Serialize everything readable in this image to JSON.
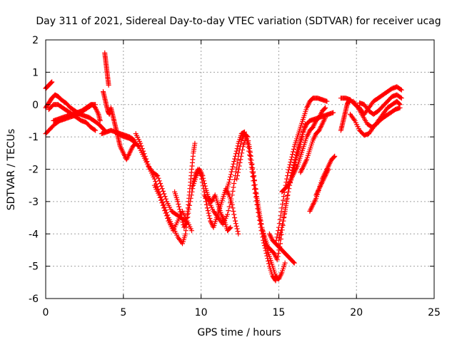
{
  "chart_data": {
    "type": "scatter",
    "title": "Day 311 of 2021, Sidereal Day-to-day VTEC variation (SDTVAR) for receiver ucag",
    "xlabel": "GPS time / hours",
    "ylabel": "SDTVAR / TECUs",
    "xlim": [
      0,
      25
    ],
    "ylim": [
      -6,
      2
    ],
    "xticks": [
      "0",
      "5",
      "10",
      "15",
      "20",
      "25"
    ],
    "yticks": [
      "-6",
      "-5",
      "-4",
      "-3",
      "-2",
      "-1",
      "0",
      "1",
      "2"
    ],
    "grid": true,
    "marker": "+",
    "color": "#ff0000",
    "segments": [
      [
        [
          0.0,
          0.5
        ],
        [
          0.1,
          0.55
        ],
        [
          0.2,
          0.6
        ],
        [
          0.3,
          0.65
        ],
        [
          0.4,
          0.7
        ]
      ],
      [
        [
          0.0,
          -0.1
        ],
        [
          0.2,
          0.05
        ],
        [
          0.4,
          0.2
        ],
        [
          0.6,
          0.3
        ],
        [
          0.8,
          0.25
        ],
        [
          1.0,
          0.15
        ],
        [
          1.3,
          0.05
        ],
        [
          1.6,
          -0.1
        ],
        [
          1.9,
          -0.2
        ],
        [
          2.2,
          -0.3
        ],
        [
          2.5,
          -0.35
        ],
        [
          2.8,
          -0.4
        ],
        [
          3.1,
          -0.5
        ],
        [
          3.4,
          -0.6
        ],
        [
          3.6,
          -0.7
        ],
        [
          3.8,
          -0.8
        ]
      ],
      [
        [
          0.2,
          -0.15
        ],
        [
          0.5,
          0.0
        ],
        [
          0.8,
          0.0
        ],
        [
          1.1,
          -0.1
        ],
        [
          1.4,
          -0.2
        ],
        [
          1.7,
          -0.3
        ],
        [
          2.0,
          -0.4
        ],
        [
          2.3,
          -0.5
        ],
        [
          2.6,
          -0.55
        ],
        [
          2.9,
          -0.7
        ],
        [
          3.2,
          -0.8
        ]
      ],
      [
        [
          0.0,
          -0.9
        ],
        [
          0.3,
          -0.75
        ],
        [
          0.6,
          -0.6
        ],
        [
          0.9,
          -0.5
        ],
        [
          1.2,
          -0.45
        ],
        [
          1.5,
          -0.4
        ],
        [
          1.8,
          -0.35
        ],
        [
          2.1,
          -0.3
        ],
        [
          2.4,
          -0.2
        ],
        [
          2.7,
          -0.1
        ],
        [
          3.0,
          0.0
        ],
        [
          3.2,
          -0.1
        ],
        [
          3.4,
          -0.3
        ],
        [
          3.5,
          -0.5
        ]
      ],
      [
        [
          0.5,
          -0.5
        ],
        [
          0.8,
          -0.45
        ],
        [
          1.1,
          -0.4
        ],
        [
          1.4,
          -0.35
        ],
        [
          1.7,
          -0.3
        ],
        [
          2.0,
          -0.25
        ],
        [
          2.3,
          -0.2
        ],
        [
          2.6,
          -0.1
        ],
        [
          2.9,
          0.0
        ],
        [
          3.2,
          0.0
        ]
      ],
      [
        [
          3.6,
          -0.9
        ],
        [
          3.9,
          -0.85
        ],
        [
          4.2,
          -0.8
        ],
        [
          4.5,
          -0.85
        ],
        [
          4.8,
          -0.9
        ],
        [
          5.1,
          -0.95
        ],
        [
          5.4,
          -1.0
        ],
        [
          5.7,
          -1.1
        ]
      ],
      [
        [
          3.8,
          1.6
        ],
        [
          3.85,
          1.4
        ],
        [
          3.9,
          1.2
        ],
        [
          3.95,
          1.0
        ],
        [
          4.0,
          0.8
        ],
        [
          4.05,
          0.6
        ]
      ],
      [
        [
          3.7,
          0.4
        ],
        [
          3.8,
          0.2
        ],
        [
          3.9,
          0.0
        ],
        [
          4.0,
          -0.2
        ],
        [
          4.1,
          -0.3
        ],
        [
          4.2,
          -0.1
        ],
        [
          4.3,
          -0.3
        ],
        [
          4.4,
          -0.5
        ],
        [
          4.5,
          -0.7
        ],
        [
          4.6,
          -0.9
        ],
        [
          4.7,
          -1.1
        ],
        [
          4.8,
          -1.3
        ],
        [
          5.0,
          -1.5
        ],
        [
          5.2,
          -1.7
        ],
        [
          5.4,
          -1.5
        ],
        [
          5.6,
          -1.3
        ],
        [
          5.8,
          -1.2
        ],
        [
          6.0,
          -1.3
        ]
      ],
      [
        [
          4.5,
          -0.8
        ],
        [
          4.8,
          -0.95
        ],
        [
          5.1,
          -1.0
        ],
        [
          5.4,
          -1.05
        ],
        [
          5.7,
          -1.15
        ],
        [
          6.0,
          -1.3
        ],
        [
          6.3,
          -1.6
        ],
        [
          6.6,
          -1.9
        ],
        [
          6.9,
          -2.1
        ],
        [
          7.2,
          -2.2
        ],
        [
          7.5,
          -2.6
        ],
        [
          7.8,
          -3.0
        ],
        [
          8.1,
          -3.3
        ],
        [
          8.4,
          -3.4
        ],
        [
          8.7,
          -3.5
        ],
        [
          9.0,
          -3.6
        ]
      ],
      [
        [
          5.8,
          -0.9
        ],
        [
          6.1,
          -1.2
        ],
        [
          6.4,
          -1.6
        ],
        [
          6.7,
          -2.0
        ],
        [
          7.0,
          -2.3
        ],
        [
          7.3,
          -2.7
        ],
        [
          7.6,
          -3.1
        ],
        [
          7.9,
          -3.5
        ],
        [
          8.2,
          -3.8
        ],
        [
          8.5,
          -4.1
        ],
        [
          8.8,
          -4.3
        ],
        [
          9.0,
          -4.0
        ],
        [
          9.1,
          -3.5
        ],
        [
          9.2,
          -3.0
        ],
        [
          9.3,
          -2.5
        ],
        [
          9.4,
          -2.0
        ],
        [
          9.5,
          -1.5
        ],
        [
          9.6,
          -1.2
        ]
      ],
      [
        [
          7.0,
          -2.5
        ],
        [
          7.3,
          -2.8
        ],
        [
          7.6,
          -3.2
        ],
        [
          7.9,
          -3.6
        ],
        [
          8.2,
          -3.9
        ],
        [
          8.5,
          -3.6
        ],
        [
          8.8,
          -3.3
        ],
        [
          9.1,
          -3.6
        ],
        [
          9.4,
          -3.9
        ]
      ],
      [
        [
          8.3,
          -2.7
        ],
        [
          8.5,
          -3.0
        ],
        [
          8.7,
          -3.4
        ],
        [
          8.9,
          -3.8
        ],
        [
          9.1,
          -3.6
        ],
        [
          9.3,
          -3.0
        ],
        [
          9.5,
          -2.5
        ],
        [
          9.7,
          -2.2
        ],
        [
          9.9,
          -2.0
        ],
        [
          10.1,
          -2.2
        ],
        [
          10.3,
          -2.6
        ],
        [
          10.5,
          -2.9
        ],
        [
          10.7,
          -3.0
        ],
        [
          10.9,
          -2.8
        ],
        [
          11.1,
          -3.1
        ],
        [
          11.3,
          -3.4
        ],
        [
          11.5,
          -3.6
        ],
        [
          11.7,
          -3.9
        ],
        [
          11.9,
          -3.8
        ]
      ],
      [
        [
          9.4,
          -2.6
        ],
        [
          9.6,
          -2.2
        ],
        [
          9.8,
          -2.0
        ],
        [
          10.0,
          -2.2
        ],
        [
          10.2,
          -2.7
        ],
        [
          10.4,
          -3.2
        ],
        [
          10.6,
          -3.6
        ],
        [
          10.8,
          -3.8
        ],
        [
          11.0,
          -3.5
        ],
        [
          11.2,
          -3.2
        ],
        [
          11.4,
          -2.9
        ],
        [
          11.6,
          -2.6
        ],
        [
          11.8,
          -2.8
        ],
        [
          12.0,
          -3.1
        ],
        [
          12.2,
          -3.6
        ],
        [
          12.4,
          -4.0
        ]
      ],
      [
        [
          10.2,
          -2.8
        ],
        [
          10.5,
          -3.0
        ],
        [
          10.8,
          -3.3
        ],
        [
          11.1,
          -3.5
        ],
        [
          11.4,
          -3.7
        ],
        [
          11.7,
          -3.4
        ],
        [
          12.0,
          -2.8
        ],
        [
          12.2,
          -2.2
        ],
        [
          12.4,
          -1.6
        ],
        [
          12.6,
          -1.1
        ],
        [
          12.8,
          -0.9
        ],
        [
          13.0,
          -1.0
        ],
        [
          13.2,
          -1.6
        ],
        [
          13.4,
          -2.2
        ],
        [
          13.6,
          -2.9
        ],
        [
          13.8,
          -3.5
        ],
        [
          14.0,
          -4.0
        ],
        [
          14.2,
          -4.4
        ],
        [
          14.4,
          -4.7
        ],
        [
          14.6,
          -5.0
        ],
        [
          14.8,
          -5.3
        ],
        [
          15.0,
          -5.4
        ],
        [
          15.2,
          -5.2
        ],
        [
          15.4,
          -4.9
        ]
      ],
      [
        [
          11.6,
          -2.7
        ],
        [
          11.8,
          -2.4
        ],
        [
          12.0,
          -2.0
        ],
        [
          12.2,
          -1.6
        ],
        [
          12.4,
          -1.2
        ],
        [
          12.6,
          -0.9
        ],
        [
          12.8,
          -0.85
        ],
        [
          13.0,
          -1.2
        ],
        [
          13.2,
          -1.8
        ],
        [
          13.4,
          -2.5
        ],
        [
          13.6,
          -3.1
        ],
        [
          13.8,
          -3.7
        ],
        [
          14.0,
          -4.2
        ],
        [
          14.2,
          -4.6
        ],
        [
          14.4,
          -5.0
        ],
        [
          14.6,
          -5.3
        ],
        [
          14.8,
          -5.45
        ]
      ],
      [
        [
          12.3,
          -2.3
        ],
        [
          12.5,
          -1.8
        ],
        [
          12.7,
          -1.3
        ],
        [
          12.9,
          -1.0
        ],
        [
          13.1,
          -1.3
        ],
        [
          13.3,
          -2.0
        ],
        [
          13.5,
          -2.6
        ],
        [
          13.7,
          -3.2
        ],
        [
          13.9,
          -3.8
        ],
        [
          14.1,
          -4.1
        ],
        [
          14.3,
          -4.4
        ],
        [
          14.5,
          -4.5
        ],
        [
          14.7,
          -4.6
        ],
        [
          14.9,
          -4.8
        ],
        [
          15.1,
          -4.3
        ],
        [
          15.3,
          -3.6
        ],
        [
          15.5,
          -3.0
        ],
        [
          15.7,
          -2.5
        ],
        [
          15.9,
          -2.1
        ],
        [
          16.1,
          -1.7
        ],
        [
          16.3,
          -1.4
        ],
        [
          16.5,
          -1.0
        ],
        [
          16.7,
          -0.6
        ]
      ],
      [
        [
          14.4,
          -4.0
        ],
        [
          14.6,
          -4.2
        ],
        [
          14.8,
          -4.3
        ],
        [
          15.0,
          -4.4
        ],
        [
          15.2,
          -4.5
        ],
        [
          15.4,
          -4.6
        ],
        [
          15.6,
          -4.7
        ],
        [
          15.8,
          -4.8
        ],
        [
          16.0,
          -4.9
        ]
      ],
      [
        [
          15.0,
          -4.2
        ],
        [
          15.2,
          -3.8
        ],
        [
          15.4,
          -3.3
        ],
        [
          15.6,
          -2.7
        ],
        [
          15.8,
          -2.2
        ],
        [
          16.0,
          -1.8
        ],
        [
          16.2,
          -1.4
        ],
        [
          16.4,
          -1.1
        ],
        [
          16.6,
          -0.8
        ],
        [
          16.8,
          -0.6
        ],
        [
          17.0,
          -0.5
        ],
        [
          17.3,
          -0.45
        ],
        [
          17.6,
          -0.4
        ],
        [
          17.9,
          -0.35
        ],
        [
          18.2,
          -0.3
        ],
        [
          18.5,
          -0.25
        ]
      ],
      [
        [
          14.8,
          -4.3
        ],
        [
          15.0,
          -3.8
        ],
        [
          15.2,
          -3.2
        ],
        [
          15.4,
          -2.6
        ],
        [
          15.6,
          -2.1
        ],
        [
          15.8,
          -1.7
        ],
        [
          16.0,
          -1.3
        ],
        [
          16.2,
          -1.0
        ],
        [
          16.4,
          -0.7
        ],
        [
          16.6,
          -0.4
        ],
        [
          16.8,
          -0.1
        ],
        [
          17.0,
          0.1
        ],
        [
          17.2,
          0.2
        ],
        [
          17.5,
          0.2
        ],
        [
          17.8,
          0.15
        ],
        [
          18.1,
          0.1
        ]
      ],
      [
        [
          15.2,
          -2.7
        ],
        [
          15.4,
          -2.6
        ],
        [
          15.6,
          -2.5
        ],
        [
          15.8,
          -2.3
        ],
        [
          16.0,
          -2.1
        ],
        [
          16.2,
          -1.9
        ],
        [
          16.4,
          -1.6
        ],
        [
          16.6,
          -1.3
        ],
        [
          16.8,
          -1.0
        ],
        [
          17.0,
          -0.8
        ],
        [
          17.2,
          -0.7
        ],
        [
          17.4,
          -0.5
        ],
        [
          17.6,
          -0.4
        ],
        [
          17.8,
          -0.2
        ],
        [
          18.0,
          -0.1
        ]
      ],
      [
        [
          16.4,
          -2.1
        ],
        [
          16.6,
          -1.9
        ],
        [
          16.8,
          -1.7
        ],
        [
          17.0,
          -1.4
        ],
        [
          17.2,
          -1.1
        ],
        [
          17.4,
          -0.9
        ],
        [
          17.6,
          -0.8
        ],
        [
          17.8,
          -0.6
        ],
        [
          18.0,
          -0.4
        ]
      ],
      [
        [
          17.0,
          -3.3
        ],
        [
          17.2,
          -3.1
        ],
        [
          17.4,
          -2.9
        ],
        [
          17.6,
          -2.6
        ],
        [
          17.8,
          -2.3
        ],
        [
          18.0,
          -2.1
        ],
        [
          18.2,
          -1.9
        ],
        [
          18.4,
          -1.7
        ],
        [
          18.6,
          -1.6
        ]
      ],
      [
        [
          17.4,
          -2.8
        ],
        [
          17.6,
          -2.6
        ],
        [
          17.8,
          -2.4
        ],
        [
          18.0,
          -2.2
        ],
        [
          18.2,
          -2.0
        ]
      ],
      [
        [
          19.0,
          -0.8
        ],
        [
          19.1,
          -0.6
        ],
        [
          19.2,
          -0.4
        ],
        [
          19.3,
          -0.2
        ],
        [
          19.4,
          0.0
        ],
        [
          19.5,
          0.1
        ]
      ],
      [
        [
          19.0,
          0.2
        ],
        [
          19.3,
          0.2
        ],
        [
          19.6,
          0.15
        ],
        [
          19.9,
          0.0
        ],
        [
          20.2,
          -0.1
        ],
        [
          20.5,
          -0.3
        ],
        [
          20.8,
          -0.1
        ],
        [
          21.1,
          0.1
        ],
        [
          21.4,
          0.2
        ],
        [
          21.7,
          0.3
        ],
        [
          22.0,
          0.4
        ],
        [
          22.3,
          0.5
        ],
        [
          22.6,
          0.55
        ],
        [
          22.9,
          0.45
        ]
      ],
      [
        [
          19.6,
          -0.3
        ],
        [
          19.9,
          -0.5
        ],
        [
          20.2,
          -0.8
        ],
        [
          20.5,
          -0.95
        ],
        [
          20.8,
          -0.9
        ],
        [
          21.1,
          -0.7
        ],
        [
          21.4,
          -0.5
        ],
        [
          21.7,
          -0.3
        ],
        [
          22.0,
          -0.1
        ],
        [
          22.3,
          0.0
        ],
        [
          22.6,
          0.1
        ],
        [
          22.8,
          0.0
        ]
      ],
      [
        [
          19.8,
          0.1
        ],
        [
          20.1,
          -0.1
        ],
        [
          20.4,
          -0.35
        ],
        [
          20.7,
          -0.6
        ],
        [
          21.0,
          -0.7
        ],
        [
          21.3,
          -0.6
        ],
        [
          21.6,
          -0.45
        ],
        [
          21.9,
          -0.35
        ],
        [
          22.2,
          -0.25
        ],
        [
          22.5,
          -0.15
        ],
        [
          22.8,
          -0.1
        ]
      ],
      [
        [
          20.2,
          0.05
        ],
        [
          20.5,
          0.0
        ],
        [
          20.8,
          -0.2
        ],
        [
          21.1,
          -0.3
        ],
        [
          21.4,
          -0.2
        ],
        [
          21.7,
          -0.05
        ],
        [
          22.0,
          0.1
        ],
        [
          22.3,
          0.25
        ],
        [
          22.6,
          0.3
        ],
        [
          22.9,
          0.2
        ]
      ]
    ]
  }
}
